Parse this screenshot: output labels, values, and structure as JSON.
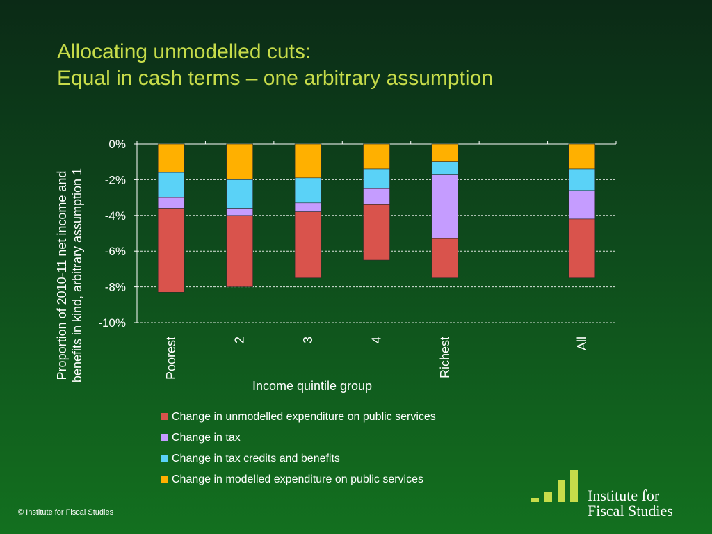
{
  "slide": {
    "title_line1": "Allocating unmodelled cuts:",
    "title_line2": "Equal in cash terms – one arbitrary assumption",
    "footer": "© Institute for Fiscal Studies"
  },
  "logo": {
    "line1": "Institute for",
    "line2": "Fiscal Studies",
    "bar_color": "#c7dc4a"
  },
  "chart_data": {
    "type": "bar",
    "stacked": true,
    "categories": [
      "Poorest",
      "2",
      "3",
      "4",
      "Richest",
      "",
      "All"
    ],
    "ylabel": "Proportion of 2010-11 net income and benefits in kind, arbitrary assumption 1",
    "xlabel": "Income quintile group",
    "ylim": [
      -10,
      0
    ],
    "yticks": [
      0,
      -2,
      -4,
      -6,
      -8,
      -10
    ],
    "ytick_labels": [
      "0%",
      "-2%",
      "-4%",
      "-6%",
      "-8%",
      "-10%"
    ],
    "grid": true,
    "legend_position": "bottom",
    "series": [
      {
        "name": "Change in modelled expenditure on public services",
        "color": "#ffb000",
        "values": [
          -1.6,
          -2.0,
          -1.9,
          -1.4,
          -1.0,
          null,
          -1.4
        ]
      },
      {
        "name": "Change in tax credits and benefits",
        "color": "#5ad2f7",
        "values": [
          -1.4,
          -1.6,
          -1.4,
          -1.1,
          -0.7,
          null,
          -1.2
        ]
      },
      {
        "name": "Change in tax",
        "color": "#c59cff",
        "values": [
          -0.6,
          -0.4,
          -0.5,
          -0.9,
          -3.6,
          null,
          -1.6
        ]
      },
      {
        "name": "Change in unmodelled expenditure on public services",
        "color": "#d9534c",
        "values": [
          -4.7,
          -4.0,
          -3.7,
          -3.1,
          -2.2,
          null,
          -3.3
        ]
      }
    ],
    "legend_order": [
      3,
      2,
      1,
      0
    ]
  }
}
